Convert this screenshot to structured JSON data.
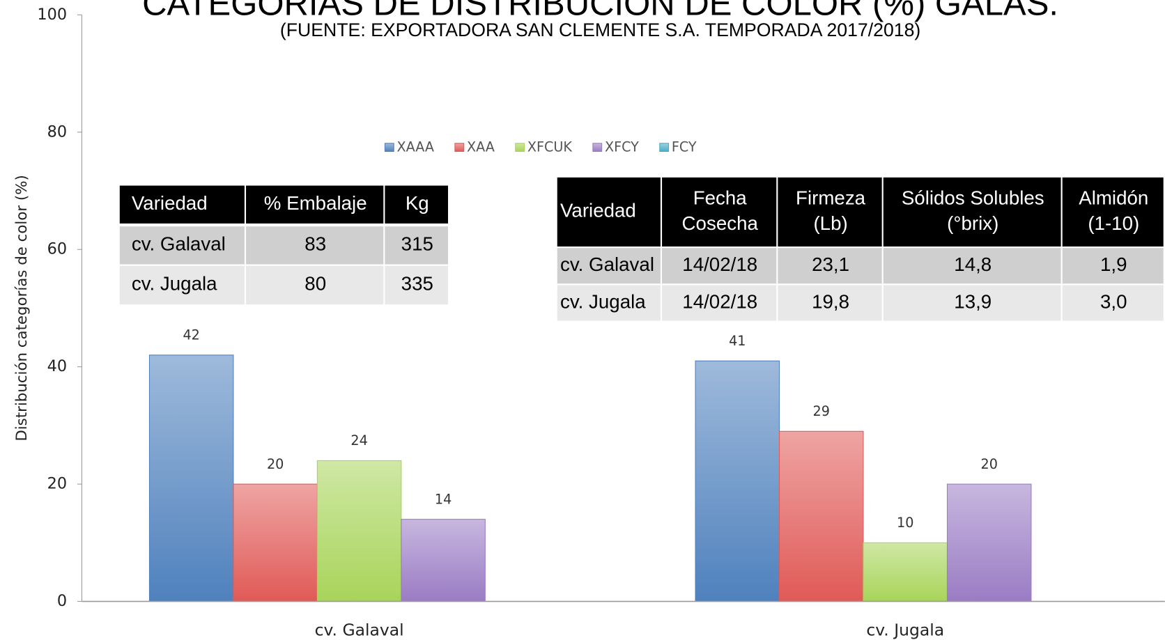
{
  "chart_data": {
    "type": "bar",
    "title": "CATEGORÍAS DE DISTRIBUCIÓN DE COLOR (%) GALAS.",
    "subtitle": "(FUENTE: EXPORTADORA SAN CLEMENTE S.A. TEMPORADA 2017/2018)",
    "y_label": "Distribución categorías de color (%)",
    "categories": [
      "cv. Galaval",
      "cv. Jugala"
    ],
    "series": [
      {
        "name": "XAAA",
        "color": "#4f81bd",
        "values": [
          42,
          41
        ]
      },
      {
        "name": "XAA",
        "color": "#e05a57",
        "values": [
          20,
          29
        ]
      },
      {
        "name": "XFCUK",
        "color": "#a8d45a",
        "values": [
          24,
          10
        ]
      },
      {
        "name": "XFCY",
        "color": "#9a7cc4",
        "values": [
          14,
          20
        ]
      },
      {
        "name": "FCY",
        "color": "#4bacc6",
        "values": [
          null,
          null
        ]
      }
    ],
    "ylim": [
      0,
      100
    ],
    "yticks": [
      0,
      20,
      40,
      60,
      80,
      100
    ],
    "legend": "top"
  },
  "tables": [
    {
      "header": [
        [
          "Variedad"
        ],
        [
          "% Embalaje"
        ],
        [
          "Kg"
        ]
      ],
      "rows": [
        [
          "cv. Galaval",
          "83",
          "315"
        ],
        [
          "cv. Jugala",
          "80",
          "335"
        ]
      ]
    },
    {
      "header": [
        [
          "Variedad"
        ],
        [
          "Fecha",
          "Cosecha"
        ],
        [
          "Firmeza",
          "(Lb)"
        ],
        [
          "Sólidos Solubles",
          "(°brix)"
        ],
        [
          "Almidón",
          "(1-10)"
        ]
      ],
      "rows": [
        [
          "cv. Galaval",
          "14/02/18",
          "23,1",
          "14,8",
          "1,9"
        ],
        [
          "cv. Jugala",
          "14/02/18",
          "19,8",
          "13,9",
          "3,0"
        ]
      ]
    }
  ]
}
